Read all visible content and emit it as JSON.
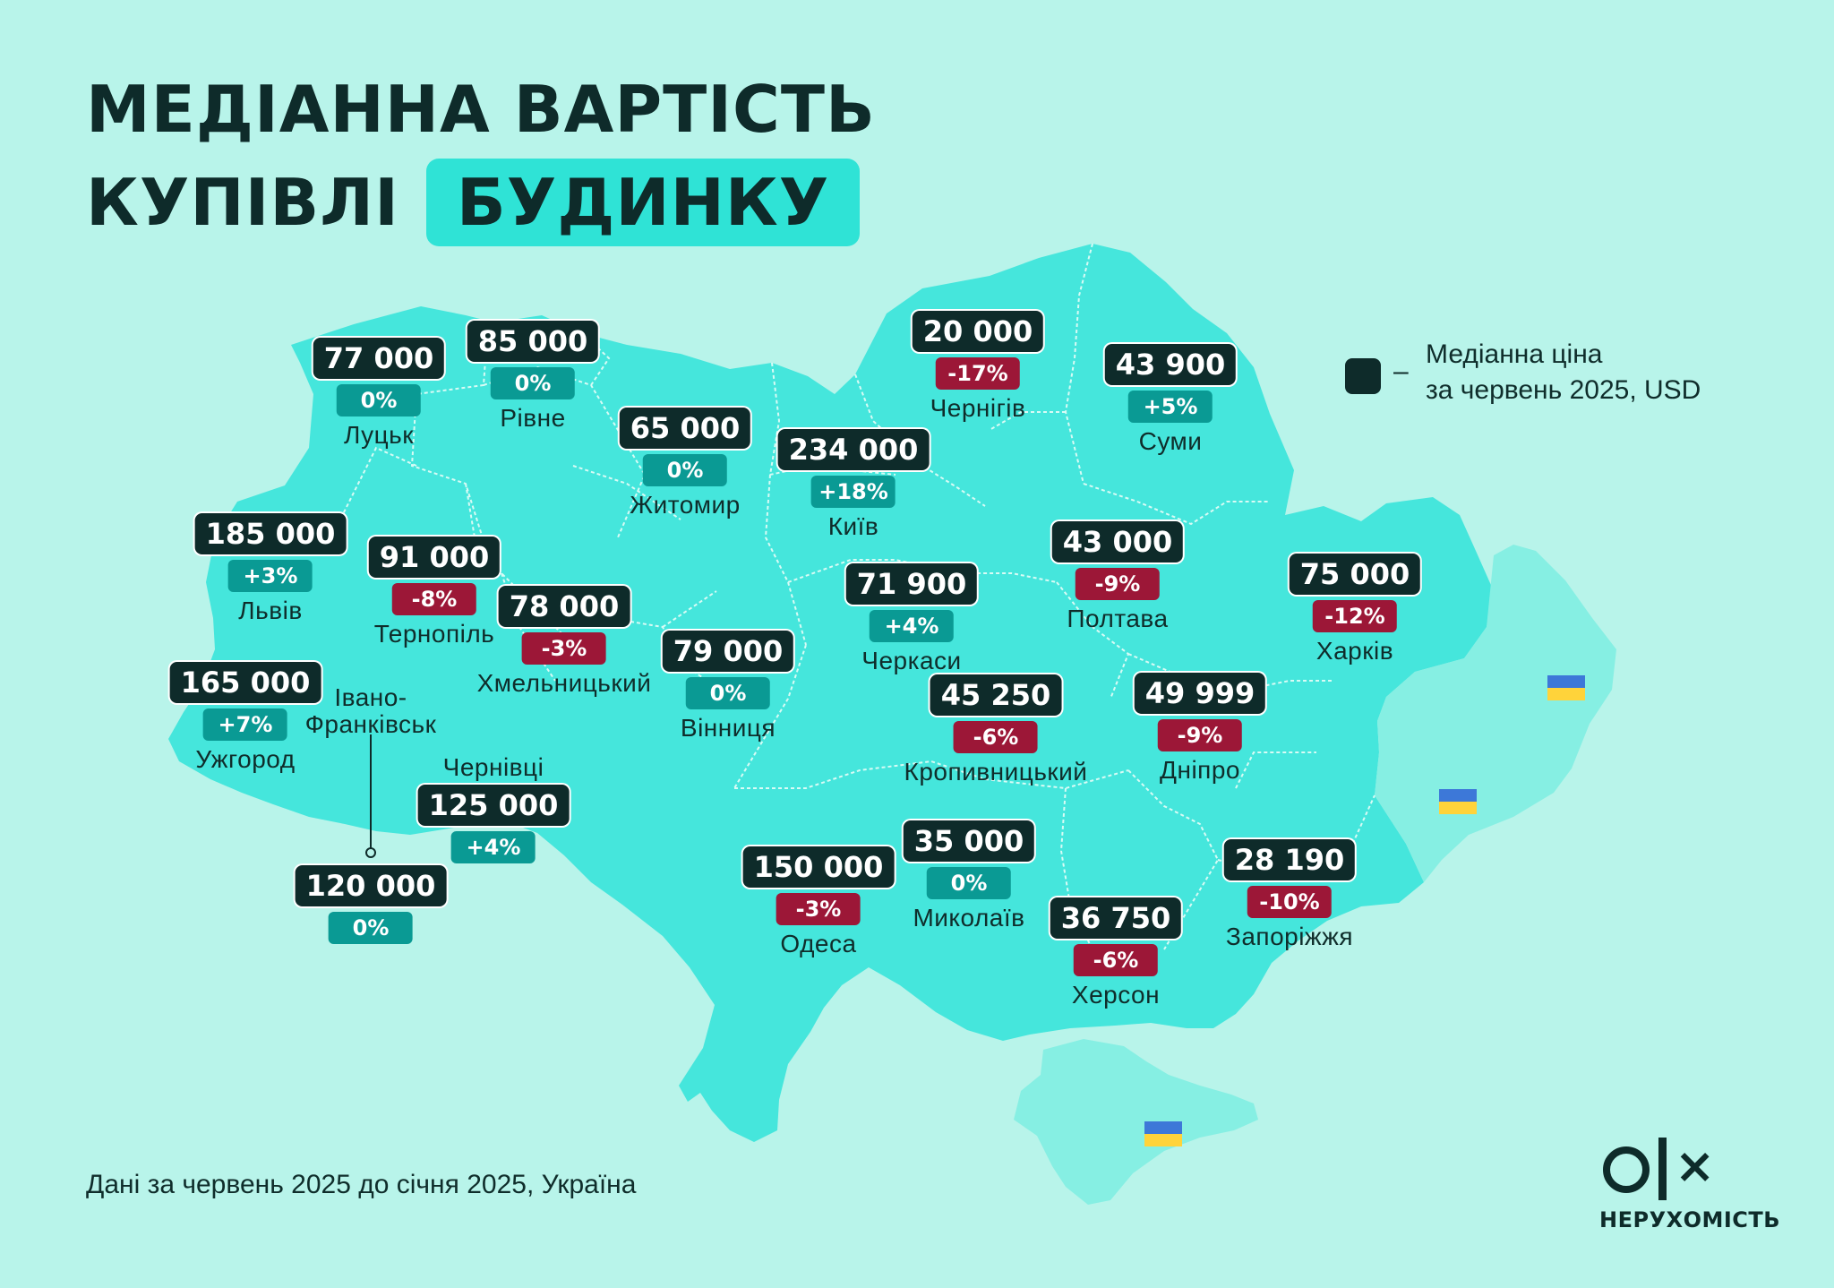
{
  "title": {
    "line1": "МЕДІАННА ВАРТІСТЬ",
    "line2": "КУПІВЛІ",
    "highlight": "БУДИНКУ"
  },
  "legend": {
    "line1": "Медіанна ціна",
    "line2": "за червень 2025, USD"
  },
  "footnote": "Дані за червень 2025 до січня 2025, Україна",
  "logo": {
    "text": "НЕРУХОМІСТЬ"
  },
  "colors": {
    "background": "#b8f4ea",
    "map_fill": "#45e6dc",
    "map_occupied": "#86efe3",
    "dark": "#0e2b2a",
    "up": "#0a9a94",
    "down": "#9c1737"
  },
  "cities": [
    {
      "name": "Луцьк",
      "price": "77 000",
      "change": "0%",
      "trend": "neutral"
    },
    {
      "name": "Рівне",
      "price": "85 000",
      "change": "0%",
      "trend": "neutral"
    },
    {
      "name": "Житомир",
      "price": "65 000",
      "change": "0%",
      "trend": "neutral"
    },
    {
      "name": "Київ",
      "price": "234 000",
      "change": "+18%",
      "trend": "up"
    },
    {
      "name": "Чернігів",
      "price": "20 000",
      "change": "-17%",
      "trend": "down"
    },
    {
      "name": "Суми",
      "price": "43 900",
      "change": "+5%",
      "trend": "up"
    },
    {
      "name": "Львів",
      "price": "185 000",
      "change": "+3%",
      "trend": "up"
    },
    {
      "name": "Тернопіль",
      "price": "91 000",
      "change": "-8%",
      "trend": "down"
    },
    {
      "name": "Хмельницький",
      "price": "78 000",
      "change": "-3%",
      "trend": "down"
    },
    {
      "name": "Вінниця",
      "price": "79 000",
      "change": "0%",
      "trend": "neutral"
    },
    {
      "name": "Черкаси",
      "price": "71 900",
      "change": "+4%",
      "trend": "up"
    },
    {
      "name": "Полтава",
      "price": "43 000",
      "change": "-9%",
      "trend": "down"
    },
    {
      "name": "Харків",
      "price": "75 000",
      "change": "-12%",
      "trend": "down"
    },
    {
      "name": "Ужгород",
      "price": "165 000",
      "change": "+7%",
      "trend": "up"
    },
    {
      "name": "Івано-Франківськ",
      "price": "120 000",
      "change": "0%",
      "trend": "neutral"
    },
    {
      "name": "Чернівці",
      "price": "125 000",
      "change": "+4%",
      "trend": "up"
    },
    {
      "name": "Кропивницький",
      "price": "45 250",
      "change": "-6%",
      "trend": "down"
    },
    {
      "name": "Дніпро",
      "price": "49 999",
      "change": "-9%",
      "trend": "down"
    },
    {
      "name": "Одеса",
      "price": "150 000",
      "change": "-3%",
      "trend": "down"
    },
    {
      "name": "Миколаїв",
      "price": "35 000",
      "change": "0%",
      "trend": "neutral"
    },
    {
      "name": "Херсон",
      "price": "36 750",
      "change": "-6%",
      "trend": "down"
    },
    {
      "name": "Запоріжжя",
      "price": "28 190",
      "change": "-10%",
      "trend": "down"
    }
  ]
}
